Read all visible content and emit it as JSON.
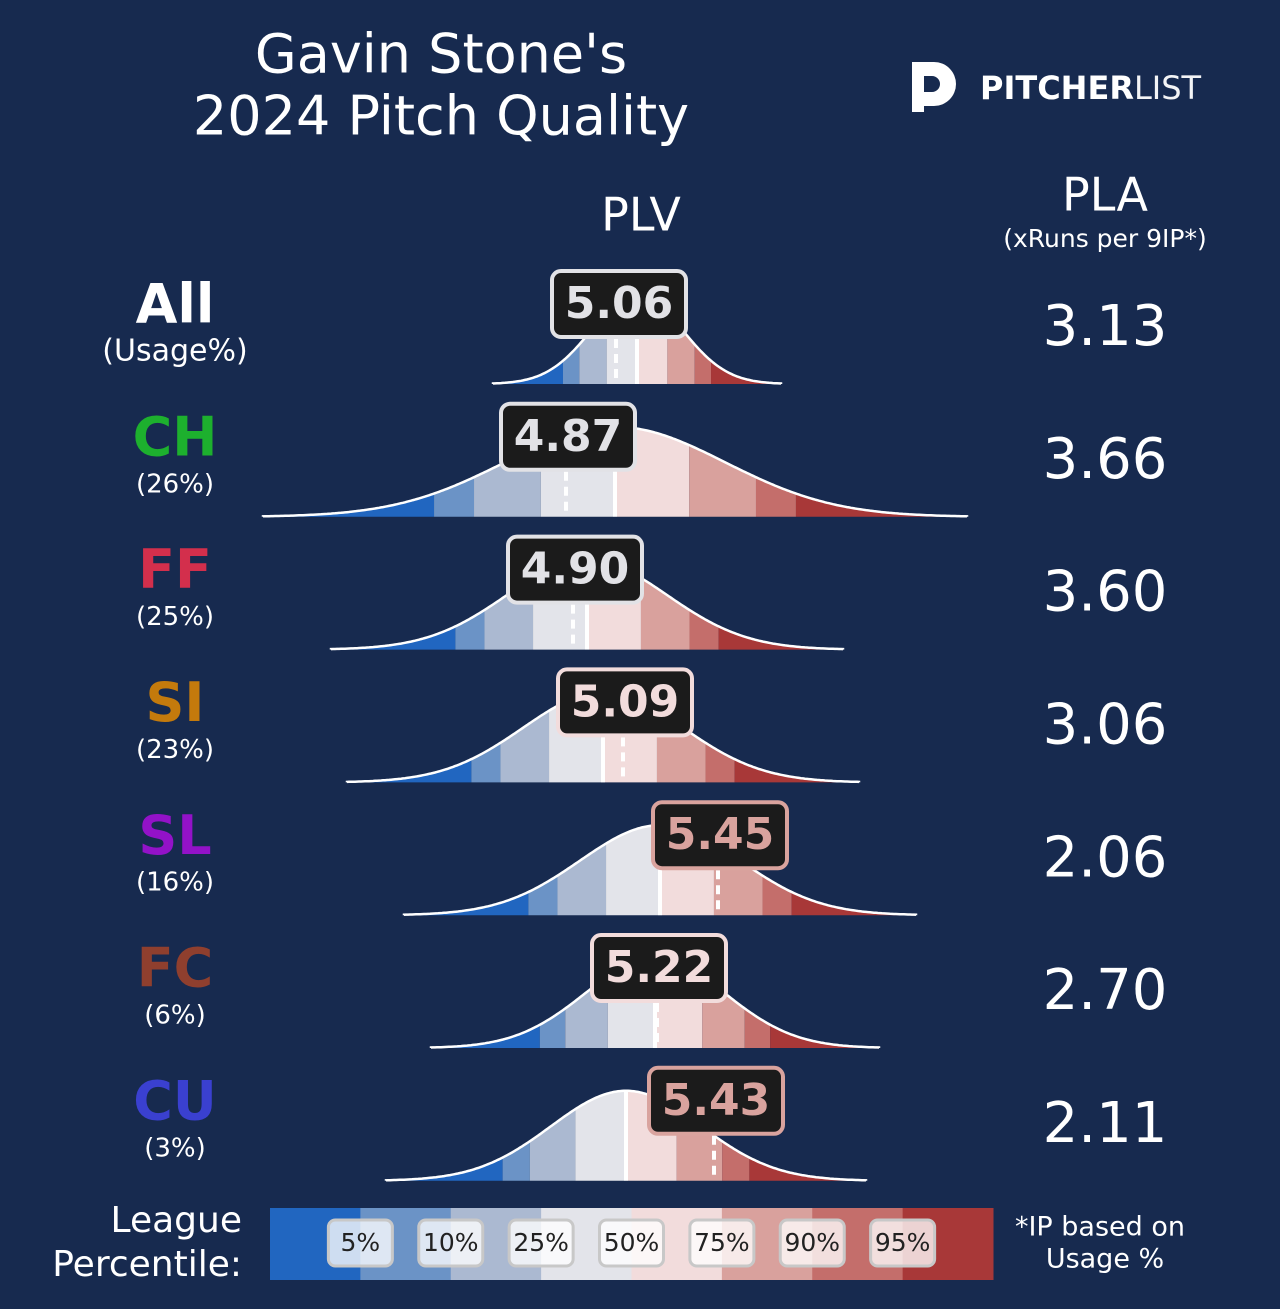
{
  "header": {
    "title_lines": [
      "Gavin Stone's",
      "2024 Pitch Quality"
    ],
    "logo": {
      "bold": "PITCHER",
      "light": "LIST"
    }
  },
  "columns": {
    "plv": "PLV",
    "pla": "PLA",
    "pla_note": "(xRuns per 9IP*)"
  },
  "rows": [
    {
      "pitch": "All",
      "usage": "(Usage%)",
      "plv": "5.06",
      "pla": "3.13",
      "color": "#ffffff",
      "badge_color": "#e2e2e6"
    },
    {
      "pitch": "CH",
      "usage": "(26%)",
      "plv": "4.87",
      "pla": "3.66",
      "color": "#1db02e",
      "badge_color": "#e2e2e6"
    },
    {
      "pitch": "FF",
      "usage": "(25%)",
      "plv": "4.90",
      "pla": "3.60",
      "color": "#d32f4c",
      "badge_color": "#e2e2e6"
    },
    {
      "pitch": "SI",
      "usage": "(23%)",
      "plv": "5.09",
      "pla": "3.06",
      "color": "#c47a0c",
      "badge_color": "#f2dcdc"
    },
    {
      "pitch": "SL",
      "usage": "(16%)",
      "plv": "5.45",
      "pla": "2.06",
      "color": "#9312c8",
      "badge_color": "#d9a39e"
    },
    {
      "pitch": "FC",
      "usage": "(6%)",
      "plv": "5.22",
      "pla": "2.70",
      "color": "#8f3f2e",
      "badge_color": "#f2dcdc"
    },
    {
      "pitch": "CU",
      "usage": "(3%)",
      "plv": "5.43",
      "pla": "2.11",
      "color": "#3a40d0",
      "badge_color": "#d9a39e"
    }
  ],
  "legend": {
    "title_lines": [
      "League",
      "Percentile:"
    ],
    "percentiles": [
      "5%",
      "10%",
      "25%",
      "50%",
      "75%",
      "90%",
      "95%"
    ],
    "colors": [
      "#2166c0",
      "#6b93c6",
      "#abb9d1",
      "#e3e4ea",
      "#f2dcdc",
      "#d9a19d",
      "#c46e6b",
      "#a83838"
    ]
  },
  "footnote_lines": [
    "*IP based on",
    "Usage %"
  ]
}
